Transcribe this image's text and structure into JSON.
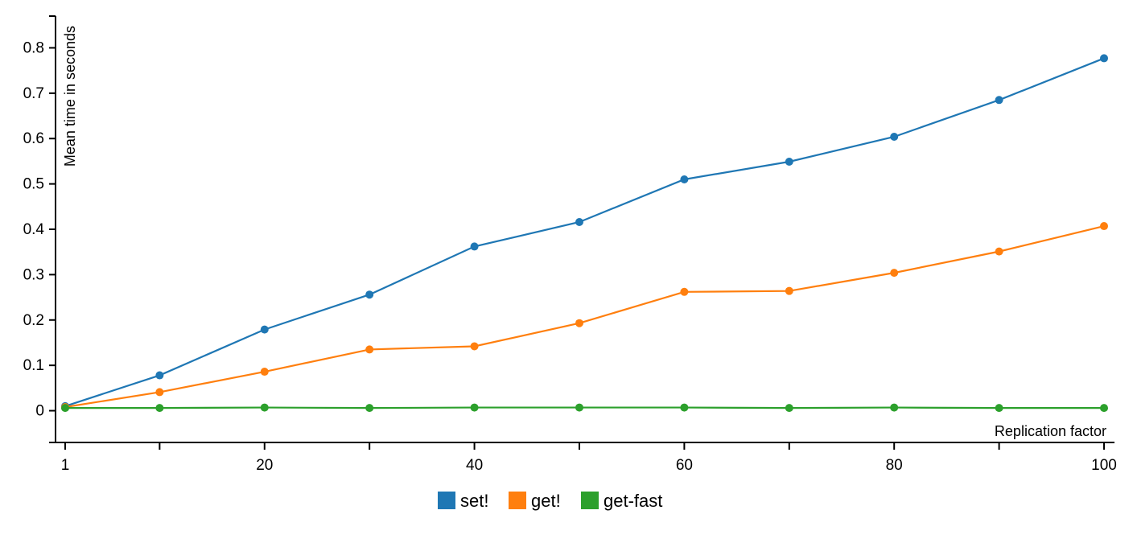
{
  "chart_data": {
    "type": "line",
    "xlabel": "Replication factor",
    "ylabel": "Mean time in seconds",
    "x": [
      1,
      10,
      20,
      30,
      40,
      50,
      60,
      70,
      80,
      90,
      100
    ],
    "xlim": [
      0,
      100
    ],
    "ylim": [
      -0.07,
      0.87
    ],
    "xticks": [
      1,
      10,
      20,
      30,
      40,
      50,
      60,
      70,
      80,
      90,
      100
    ],
    "xtick_labels": [
      "1",
      "",
      "20",
      "",
      "40",
      "",
      "60",
      "",
      "80",
      "",
      "100"
    ],
    "yticks": [
      -0.07,
      0,
      0.1,
      0.2,
      0.3,
      0.4,
      0.5,
      0.6,
      0.7,
      0.8,
      0.87
    ],
    "ytick_labels": [
      "",
      "0",
      "0.1",
      "0.2",
      "0.3",
      "0.4",
      "0.5",
      "0.6",
      "0.7",
      "0.8",
      ""
    ],
    "grid": false,
    "legend_position": "bottom-center",
    "series": [
      {
        "name": "set!",
        "color": "#1f77b4",
        "values": [
          0.01,
          0.078,
          0.179,
          0.256,
          0.362,
          0.416,
          0.51,
          0.549,
          0.604,
          0.685,
          0.777
        ]
      },
      {
        "name": "get!",
        "color": "#ff7f0e",
        "values": [
          0.008,
          0.041,
          0.086,
          0.135,
          0.142,
          0.193,
          0.262,
          0.264,
          0.304,
          0.351,
          0.407
        ]
      },
      {
        "name": "get-fast",
        "color": "#2ca02c",
        "values": [
          0.006,
          0.006,
          0.007,
          0.006,
          0.007,
          0.007,
          0.007,
          0.006,
          0.007,
          0.006,
          0.006
        ]
      }
    ]
  }
}
